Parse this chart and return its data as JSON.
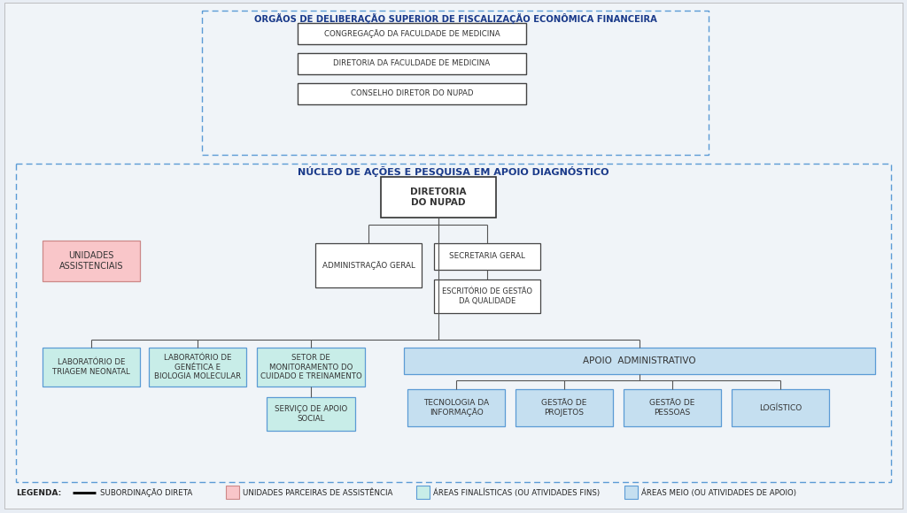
{
  "bg_color": "#e8edf4",
  "title_top": "ORGÃOS DE DELIBERAÇÃO SUPERIOR DE FISCALIZAÇÃO ECONÔMICA FINANCEIRA",
  "title_bottom": "NÚCLEO DE AÇÕES E PESQUISA EM APOIO DIAGNÓSTICO",
  "top_boxes": [
    "CONGREGAÇÃO DA FACULDADE DE MEDICINA",
    "DIRETORIA DA FACULDADE DE MEDICINA",
    "CONSELHO DIRETOR DO NUPAD"
  ],
  "diretoria_text": "DIRETORIA\nDO NUPAD",
  "admin_text": "ADMINISTRAÇÃO GERAL",
  "secretaria_text": "SECRETARIA GERAL",
  "escritorio_text": "ESCRITÓRIO DE GESTÃO\nDA QUALIDADE",
  "unidades_text": "UNIDADES\nASSISTENCIAIS",
  "lab1_text": "LABORATÓRIO DE\nTRIAGEM NEONATAL",
  "lab2_text": "LABORATÓRIO DE\nGENÉTICA E\nBIOLOGIA MOLECULAR",
  "setor_text": "SETOR DE\nMONITORAMENTO DO\nCUIDADO E TREINAMENTO",
  "servico_text": "SERVIÇO DE APOIO\nSOCIAL",
  "apoio_text": "APOIO  ADMINISTRATIVO",
  "tec_text": "TECNOLOGIA DA\nINFORMAÇÃO",
  "gestao_proj_text": "GESTÃO DE\nPROJETOS",
  "gestao_pess_text": "GESTÃO DE\nPESSOAS",
  "logistico_text": "LOGÍSTICO",
  "legend_line": "SUBORDINAÇÃO DIRETA",
  "legend_pink": "UNIDADES PARCEIRAS DE ASSISTÊNCIA",
  "legend_green": "ÁREAS FINALÍSTICAS (OU ATIVIDADES FINS)",
  "legend_blue": "ÁREAS MEIO (OU ATIVIDADES DE APOIO)",
  "color_white_box": "#ffffff",
  "color_pink_box": "#f9c6c9",
  "color_green_box": "#c8ede8",
  "color_blue_box": "#c5dff0",
  "color_title_blue": "#1a3a8a",
  "color_dashed_border": "#5b9bd5",
  "color_line": "#555555"
}
